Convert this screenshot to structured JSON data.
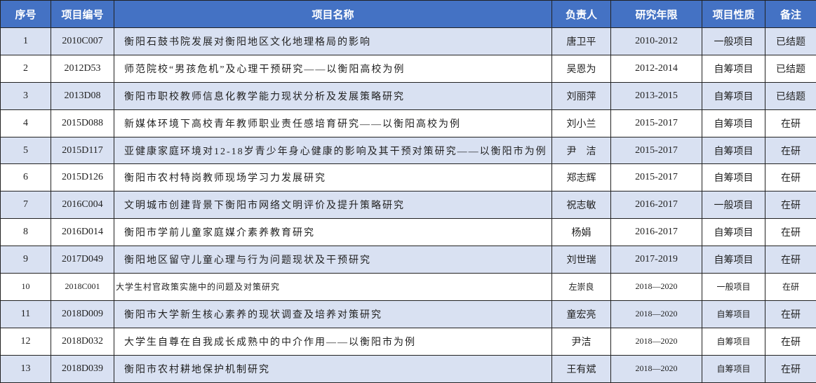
{
  "headers": [
    "序号",
    "项目编号",
    "项目名称",
    "负责人",
    "研究年限",
    "项目性质",
    "备注"
  ],
  "rows": [
    {
      "no": "1",
      "code": "2010C007",
      "name": "衡阳石鼓书院发展对衡阳地区文化地理格局的影响",
      "leader": "唐卫平",
      "years": "2010-2012",
      "type": "一般项目",
      "note": "已结题"
    },
    {
      "no": "2",
      "code": "2012D53",
      "name": "师范院校“男孩危机”及心理干预研究——以衡阳高校为例",
      "leader": "吴恩为",
      "years": "2012-2014",
      "type": "自筹项目",
      "note": "已结题"
    },
    {
      "no": "3",
      "code": "2013D08",
      "name": "衡阳市职校教师信息化教学能力现状分析及发展策略研究",
      "leader": "刘丽萍",
      "years": "2013-2015",
      "type": "自筹项目",
      "note": "已结题"
    },
    {
      "no": "4",
      "code": "2015D088",
      "name": "新媒体环境下高校青年教师职业责任感培育研究——以衡阳高校为例",
      "leader": "刘小兰",
      "years": "2015-2017",
      "type": "自筹项目",
      "note": "在研"
    },
    {
      "no": "5",
      "code": "2015D117",
      "name": "亚健康家庭环境对12-18岁青少年身心健康的影响及其干预对策研究——以衡阳市为例",
      "leader": "尹　洁",
      "years": "2015-2017",
      "type": "自筹项目",
      "note": "在研"
    },
    {
      "no": "6",
      "code": "2015D126",
      "name": "衡阳市农村特岗教师现场学习力发展研究",
      "leader": "郑志辉",
      "years": "2015-2017",
      "type": "自筹项目",
      "note": "在研"
    },
    {
      "no": "7",
      "code": "2016C004",
      "name": "文明城市创建背景下衡阳市网络文明评价及提升策略研究",
      "leader": "祝志敏",
      "years": "2016-2017",
      "type": "一般项目",
      "note": "在研"
    },
    {
      "no": "8",
      "code": "2016D014",
      "name": "衡阳市学前儿童家庭媒介素养教育研究",
      "leader": "杨娟",
      "years": "2016-2017",
      "type": "自筹项目",
      "note": "在研"
    },
    {
      "no": "9",
      "code": "2017D049",
      "name": "衡阳地区留守儿童心理与行为问题现状及干预研究",
      "leader": "刘世瑞",
      "years": "2017-2019",
      "type": "自筹项目",
      "note": "在研"
    },
    {
      "no": "10",
      "code": "2018C001",
      "name": "大学生村官政策实施中的问题及对策研究",
      "leader": "左崇良",
      "years": "2018—2020",
      "type": "一般项目",
      "note": "在研"
    },
    {
      "no": "11",
      "code": "2018D009",
      "name": "衡阳市大学新生核心素养的现状调查及培养对策研究",
      "leader": "童宏亮",
      "years": "2018—2020",
      "type": "自筹项目",
      "note": "在研"
    },
    {
      "no": "12",
      "code": "2018D032",
      "name": "大学生自尊在自我成长成熟中的中介作用——以衡阳市为例",
      "leader": "尹洁",
      "years": "2018—2020",
      "type": "自筹项目",
      "note": "在研"
    },
    {
      "no": "13",
      "code": "2018D039",
      "name": "衡阳市农村耕地保护机制研究",
      "leader": "王有斌",
      "years": "2018—2020",
      "type": "自筹项目",
      "note": "在研"
    }
  ],
  "colors": {
    "header": "#4472C4",
    "band": "#D9E1F2"
  }
}
